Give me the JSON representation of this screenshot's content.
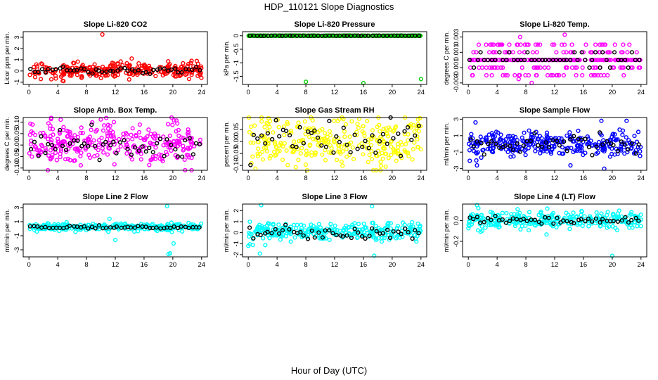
{
  "figure": {
    "title": "HDP_110121  Slope Diagnostics",
    "xlabel": "Hour of Day (UTC)"
  },
  "chart_data": [
    {
      "type": "scatter",
      "title": "Slope Li-820 CO2",
      "ylabel": "Licor ppm per min.",
      "color": "#ff0000",
      "xlim": [
        -0.8,
        24.8
      ],
      "ylim": [
        -1.2,
        3.5
      ],
      "xticks": [
        0,
        4,
        8,
        12,
        16,
        20,
        24
      ],
      "yticks": [
        -1,
        0,
        1,
        2,
        3
      ],
      "ytick_labels": [
        "-1",
        "0",
        "1",
        "2",
        "3"
      ],
      "mode": "noise",
      "center": 0.05,
      "spread": 0.35,
      "mean_spread": 0.15,
      "outliers": [
        [
          10.2,
          3.25
        ],
        [
          22.6,
          0.9
        ],
        [
          4.8,
          -0.9
        ]
      ],
      "seed": 11
    },
    {
      "type": "scatter",
      "title": "Slope Li-820 Pressure",
      "ylabel": "kPa per min.",
      "color": "#00cc00",
      "xlim": [
        -0.8,
        24.8
      ],
      "ylim": [
        -1.8,
        0.15
      ],
      "xticks": [
        0,
        4,
        8,
        12,
        16,
        20,
        24
      ],
      "yticks": [
        0,
        -0.5,
        -1,
        -1.5
      ],
      "ytick_labels": [
        "0",
        "-0.5",
        "-1",
        "-1.5"
      ],
      "mode": "flat",
      "center": 0.0,
      "spread": 0.004,
      "mean_spread": 0.002,
      "outliers": [
        [
          8.0,
          -1.7
        ],
        [
          16.0,
          -1.75
        ],
        [
          24.0,
          -1.6
        ]
      ],
      "seed": 22
    },
    {
      "type": "scatter",
      "title": "Slope Li-820 Temp.",
      "ylabel": "degrees C per min.",
      "color": "#ff00ff",
      "xlim": [
        -0.8,
        24.8
      ],
      "ylim": [
        -0.0032,
        0.0037
      ],
      "xticks": [
        0,
        4,
        8,
        12,
        16,
        20,
        24
      ],
      "yticks": [
        -0.003,
        -0.001,
        0.001,
        0.003
      ],
      "ytick_labels": [
        "-0.003",
        "-0.001",
        "0.001",
        "0.003"
      ],
      "mode": "quantized",
      "center": 0.0,
      "levels": [
        -0.002,
        -0.001,
        0.0,
        0.0,
        0.0,
        0.0,
        0.001,
        0.002
      ],
      "mean_levels": [
        -0.001,
        0.0,
        0.0,
        0.0,
        0.001
      ],
      "outliers": [
        [
          7.2,
          0.003
        ],
        [
          7.0,
          -0.0025
        ],
        [
          8.8,
          -0.003
        ],
        [
          13.4,
          0.0033
        ]
      ],
      "seed": 33
    },
    {
      "type": "scatter",
      "title": "Slope Amb. Box Temp.",
      "ylabel": "degrees C per min.",
      "color": "#ff00ff",
      "xlim": [
        -0.8,
        24.8
      ],
      "ylim": [
        -0.11,
        0.12
      ],
      "xticks": [
        0,
        4,
        8,
        12,
        16,
        20,
        24
      ],
      "yticks": [
        -0.1,
        -0.05,
        0,
        0.05,
        0.1
      ],
      "ytick_labels": [
        "-0.10",
        "-0.05",
        "0.00",
        "0.05",
        "0.10"
      ],
      "mode": "noise",
      "center": 0.005,
      "spread": 0.045,
      "mean_spread": 0.03,
      "outliers": [
        [
          22.6,
          -0.11
        ],
        [
          11.8,
          0.1
        ]
      ],
      "seed": 44
    },
    {
      "type": "scatter",
      "title": "Slope Gas Stream RH",
      "ylabel": "percent per min.",
      "color": "#ffff00",
      "xlim": [
        -0.8,
        24.8
      ],
      "ylim": [
        -0.12,
        0.1
      ],
      "xticks": [
        0,
        4,
        8,
        12,
        16,
        20,
        24
      ],
      "yticks": [
        -0.1,
        -0.05,
        0,
        0.05
      ],
      "ytick_labels": [
        "-0.10",
        "-0.05",
        "0.00",
        "0.05"
      ],
      "mode": "noise",
      "center": 0.0,
      "spread": 0.05,
      "mean_spread": 0.04,
      "outliers": [
        [
          17.8,
          -0.12
        ],
        [
          5.4,
          0.08
        ]
      ],
      "seed": 55
    },
    {
      "type": "scatter",
      "title": "Slope Sample Flow",
      "ylabel": "ml/min per min.",
      "color": "#0000ff",
      "xlim": [
        -0.8,
        24.8
      ],
      "ylim": [
        -3.2,
        3.2
      ],
      "xticks": [
        0,
        4,
        8,
        12,
        16,
        20,
        24
      ],
      "yticks": [
        -3,
        -1,
        1,
        3
      ],
      "ytick_labels": [
        "-3",
        "-1",
        "1",
        "3"
      ],
      "mode": "noise",
      "center": 0.0,
      "spread": 0.7,
      "mean_spread": 0.5,
      "outliers": [
        [
          1.0,
          2.6
        ],
        [
          1.2,
          -2.6
        ],
        [
          14.2,
          -2.6
        ],
        [
          18.5,
          2.8
        ],
        [
          22.0,
          2.8
        ],
        [
          18.9,
          -3.0
        ]
      ],
      "seed": 66
    },
    {
      "type": "scatter",
      "title": "Slope Line 2 Flow",
      "ylabel": "ml/min per min.",
      "color": "#00ffff",
      "xlim": [
        -0.8,
        24.8
      ],
      "ylim": [
        -4.0,
        3.5
      ],
      "xticks": [
        0,
        4,
        8,
        12,
        16,
        20,
        24
      ],
      "yticks": [
        -3,
        -1,
        1,
        3
      ],
      "ytick_labels": [
        "-3",
        "-1",
        "1",
        "3"
      ],
      "mode": "noise",
      "center": 0.2,
      "spread": 0.25,
      "mean_spread": 0.12,
      "outliers": [
        [
          19.2,
          3.2
        ],
        [
          19.6,
          -3.5
        ],
        [
          19.4,
          -3.6
        ],
        [
          20.1,
          -2.1
        ],
        [
          12.0,
          -1.6
        ],
        [
          11.2,
          1.4
        ]
      ],
      "seed": 77
    },
    {
      "type": "scatter",
      "title": "Slope Line 3 Flow",
      "ylabel": "ml/min per min.",
      "color": "#00ffff",
      "xlim": [
        -0.8,
        24.8
      ],
      "ylim": [
        -2.2,
        2.6
      ],
      "xticks": [
        0,
        4,
        8,
        12,
        16,
        20,
        24
      ],
      "yticks": [
        -2,
        -1,
        0,
        1,
        2
      ],
      "ytick_labels": [
        "-2",
        "-1",
        "0",
        "1",
        "2"
      ],
      "mode": "noise",
      "center": 0.05,
      "spread": 0.4,
      "mean_spread": 0.35,
      "outliers": [
        [
          1.8,
          2.5
        ],
        [
          17.2,
          2.4
        ],
        [
          0.0,
          -1.2
        ],
        [
          1.6,
          -1.9
        ],
        [
          17.5,
          -2.1
        ]
      ],
      "seed": 88
    },
    {
      "type": "scatter",
      "title": "Slope Line 4 (LT) Flow",
      "ylabel": "ml/min per min.",
      "color": "#00ffff",
      "xlim": [
        -0.8,
        24.8
      ],
      "ylim": [
        -0.35,
        0.16
      ],
      "xticks": [
        0,
        4,
        8,
        12,
        16,
        20,
        24
      ],
      "yticks": [
        -0.2,
        0
      ],
      "ytick_labels": [
        "-0.2",
        "0.0"
      ],
      "mode": "noise",
      "center": 0.005,
      "spread": 0.045,
      "mean_spread": 0.02,
      "outliers": [
        [
          1.2,
          0.15
        ],
        [
          1.4,
          0.12
        ],
        [
          20.0,
          -0.34
        ]
      ],
      "seed": 99
    }
  ]
}
